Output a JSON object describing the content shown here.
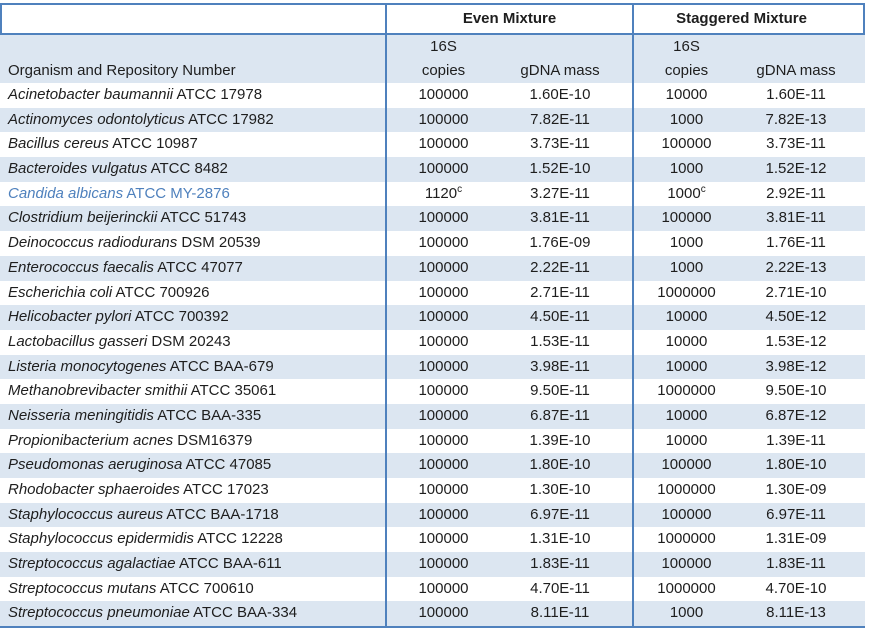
{
  "colors": {
    "border_blue": "#4f81bd",
    "band_blue": "#dce6f1",
    "highlight_blue": "#4f81bd",
    "text": "#1e1e1e"
  },
  "table": {
    "group_headers": {
      "even": "Even Mixture",
      "staggered": "Staggered Mixture"
    },
    "column_headers": {
      "organism": "Organism and Repository Number",
      "copies_line1": "16S",
      "copies_line2": "copies",
      "gdna_mass": "gDNA mass"
    },
    "footnote_marker": "c",
    "rows": [
      {
        "organism": "Acinetobacter baumannii",
        "repository": "ATCC 17978",
        "even_copies": "100000",
        "even_copies_note": "",
        "even_gdna_mass": "1.60E-10",
        "staggered_copies": "10000",
        "staggered_copies_note": "",
        "staggered_gdna_mass": "1.60E-11",
        "highlighted": false
      },
      {
        "organism": "Actinomyces odontolyticus",
        "repository": "ATCC 17982",
        "even_copies": "100000",
        "even_copies_note": "",
        "even_gdna_mass": "7.82E-11",
        "staggered_copies": "1000",
        "staggered_copies_note": "",
        "staggered_gdna_mass": "7.82E-13",
        "highlighted": false
      },
      {
        "organism": "Bacillus cereus",
        "repository": "ATCC 10987",
        "even_copies": "100000",
        "even_copies_note": "",
        "even_gdna_mass": "3.73E-11",
        "staggered_copies": "100000",
        "staggered_copies_note": "",
        "staggered_gdna_mass": "3.73E-11",
        "highlighted": false
      },
      {
        "organism": "Bacteroides vulgatus",
        "repository": "ATCC 8482",
        "even_copies": "100000",
        "even_copies_note": "",
        "even_gdna_mass": "1.52E-10",
        "staggered_copies": "1000",
        "staggered_copies_note": "",
        "staggered_gdna_mass": "1.52E-12",
        "highlighted": false
      },
      {
        "organism": "Candida albicans",
        "repository": "ATCC MY-2876",
        "even_copies": "1120",
        "even_copies_note": "c",
        "even_gdna_mass": "3.27E-11",
        "staggered_copies": "1000",
        "staggered_copies_note": "c",
        "staggered_gdna_mass": "2.92E-11",
        "highlighted": true
      },
      {
        "organism": "Clostridium beijerinckii",
        "repository": "ATCC 51743",
        "even_copies": "100000",
        "even_copies_note": "",
        "even_gdna_mass": "3.81E-11",
        "staggered_copies": "100000",
        "staggered_copies_note": "",
        "staggered_gdna_mass": "3.81E-11",
        "highlighted": false
      },
      {
        "organism": "Deinococcus radiodurans",
        "repository": "DSM 20539",
        "even_copies": "100000",
        "even_copies_note": "",
        "even_gdna_mass": "1.76E-09",
        "staggered_copies": "1000",
        "staggered_copies_note": "",
        "staggered_gdna_mass": "1.76E-11",
        "highlighted": false
      },
      {
        "organism": "Enterococcus faecalis",
        "repository": "ATCC 47077",
        "even_copies": "100000",
        "even_copies_note": "",
        "even_gdna_mass": "2.22E-11",
        "staggered_copies": "1000",
        "staggered_copies_note": "",
        "staggered_gdna_mass": "2.22E-13",
        "highlighted": false
      },
      {
        "organism": "Escherichia coli",
        "repository": "ATCC 700926",
        "even_copies": "100000",
        "even_copies_note": "",
        "even_gdna_mass": "2.71E-11",
        "staggered_copies": "1000000",
        "staggered_copies_note": "",
        "staggered_gdna_mass": "2.71E-10",
        "highlighted": false
      },
      {
        "organism": "Helicobacter pylori",
        "repository": "ATCC 700392",
        "even_copies": "100000",
        "even_copies_note": "",
        "even_gdna_mass": "4.50E-11",
        "staggered_copies": "10000",
        "staggered_copies_note": "",
        "staggered_gdna_mass": "4.50E-12",
        "highlighted": false
      },
      {
        "organism": "Lactobacillus gasseri",
        "repository": "DSM 20243",
        "even_copies": "100000",
        "even_copies_note": "",
        "even_gdna_mass": "1.53E-11",
        "staggered_copies": "10000",
        "staggered_copies_note": "",
        "staggered_gdna_mass": "1.53E-12",
        "highlighted": false
      },
      {
        "organism": "Listeria monocytogenes",
        "repository": "ATCC BAA-679",
        "even_copies": "100000",
        "even_copies_note": "",
        "even_gdna_mass": "3.98E-11",
        "staggered_copies": "10000",
        "staggered_copies_note": "",
        "staggered_gdna_mass": "3.98E-12",
        "highlighted": false
      },
      {
        "organism": "Methanobrevibacter smithii",
        "repository": "ATCC 35061",
        "even_copies": "100000",
        "even_copies_note": "",
        "even_gdna_mass": "9.50E-11",
        "staggered_copies": "1000000",
        "staggered_copies_note": "",
        "staggered_gdna_mass": "9.50E-10",
        "highlighted": false
      },
      {
        "organism": "Neisseria meningitidis",
        "repository": "ATCC BAA-335",
        "even_copies": "100000",
        "even_copies_note": "",
        "even_gdna_mass": "6.87E-11",
        "staggered_copies": "10000",
        "staggered_copies_note": "",
        "staggered_gdna_mass": "6.87E-12",
        "highlighted": false
      },
      {
        "organism": "Propionibacterium acnes",
        "repository": "DSM16379",
        "even_copies": "100000",
        "even_copies_note": "",
        "even_gdna_mass": "1.39E-10",
        "staggered_copies": "10000",
        "staggered_copies_note": "",
        "staggered_gdna_mass": "1.39E-11",
        "highlighted": false
      },
      {
        "organism": "Pseudomonas aeruginosa",
        "repository": "ATCC 47085",
        "even_copies": "100000",
        "even_copies_note": "",
        "even_gdna_mass": "1.80E-10",
        "staggered_copies": "100000",
        "staggered_copies_note": "",
        "staggered_gdna_mass": "1.80E-10",
        "highlighted": false
      },
      {
        "organism": "Rhodobacter sphaeroides",
        "repository": "ATCC 17023",
        "even_copies": "100000",
        "even_copies_note": "",
        "even_gdna_mass": "1.30E-10",
        "staggered_copies": "1000000",
        "staggered_copies_note": "",
        "staggered_gdna_mass": "1.30E-09",
        "highlighted": false
      },
      {
        "organism": "Staphylococcus aureus",
        "repository": "ATCC BAA-1718",
        "even_copies": "100000",
        "even_copies_note": "",
        "even_gdna_mass": "6.97E-11",
        "staggered_copies": "100000",
        "staggered_copies_note": "",
        "staggered_gdna_mass": "6.97E-11",
        "highlighted": false
      },
      {
        "organism": "Staphylococcus epidermidis",
        "repository": "ATCC 12228",
        "even_copies": "100000",
        "even_copies_note": "",
        "even_gdna_mass": "1.31E-10",
        "staggered_copies": "1000000",
        "staggered_copies_note": "",
        "staggered_gdna_mass": "1.31E-09",
        "highlighted": false
      },
      {
        "organism": "Streptococcus agalactiae",
        "repository": "ATCC BAA-611",
        "even_copies": "100000",
        "even_copies_note": "",
        "even_gdna_mass": "1.83E-11",
        "staggered_copies": "100000",
        "staggered_copies_note": "",
        "staggered_gdna_mass": "1.83E-11",
        "highlighted": false
      },
      {
        "organism": "Streptococcus mutans",
        "repository": "ATCC 700610",
        "even_copies": "100000",
        "even_copies_note": "",
        "even_gdna_mass": "4.70E-11",
        "staggered_copies": "1000000",
        "staggered_copies_note": "",
        "staggered_gdna_mass": "4.70E-10",
        "highlighted": false
      },
      {
        "organism": "Streptococcus pneumoniae",
        "repository": "ATCC BAA-334",
        "even_copies": "100000",
        "even_copies_note": "",
        "even_gdna_mass": "8.11E-11",
        "staggered_copies": "1000",
        "staggered_copies_note": "",
        "staggered_gdna_mass": "8.11E-13",
        "highlighted": false
      }
    ]
  }
}
